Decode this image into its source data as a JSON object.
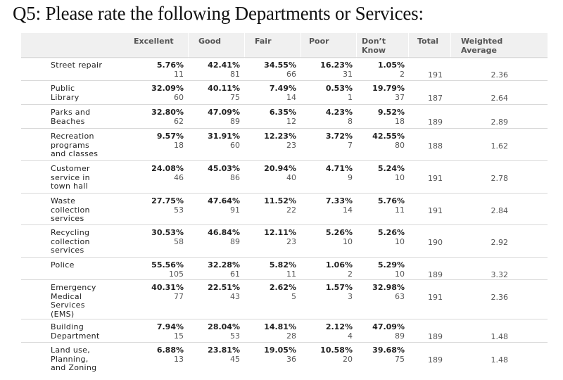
{
  "title": "Q5: Please rate the following Departments or Services:",
  "headers": {
    "excellent": "Excellent",
    "good": "Good",
    "fair": "Fair",
    "poor": "Poor",
    "dont_know_1": "Don’t",
    "dont_know_2": "Know",
    "total": "Total",
    "weighted_1": "Weighted",
    "weighted_2": "Average"
  },
  "rows": [
    {
      "label": [
        "Street repair"
      ],
      "cells": [
        [
          "5.76%",
          "11"
        ],
        [
          "42.41%",
          "81"
        ],
        [
          "34.55%",
          "66"
        ],
        [
          "16.23%",
          "31"
        ],
        [
          "1.05%",
          "2"
        ]
      ],
      "total": "191",
      "avg": "2.36"
    },
    {
      "label": [
        "Public",
        "Library"
      ],
      "cells": [
        [
          "32.09%",
          "60"
        ],
        [
          "40.11%",
          "75"
        ],
        [
          "7.49%",
          "14"
        ],
        [
          "0.53%",
          "1"
        ],
        [
          "19.79%",
          "37"
        ]
      ],
      "total": "187",
      "avg": "2.64"
    },
    {
      "label": [
        "Parks and",
        "Beaches"
      ],
      "cells": [
        [
          "32.80%",
          "62"
        ],
        [
          "47.09%",
          "89"
        ],
        [
          "6.35%",
          "12"
        ],
        [
          "4.23%",
          "8"
        ],
        [
          "9.52%",
          "18"
        ]
      ],
      "total": "189",
      "avg": "2.89"
    },
    {
      "label": [
        "Recreation",
        "programs",
        "and classes"
      ],
      "cells": [
        [
          "9.57%",
          "18"
        ],
        [
          "31.91%",
          "60"
        ],
        [
          "12.23%",
          "23"
        ],
        [
          "3.72%",
          "7"
        ],
        [
          "42.55%",
          "80"
        ]
      ],
      "total": "188",
      "avg": "1.62"
    },
    {
      "label": [
        "Customer",
        "service in",
        "town hall"
      ],
      "cells": [
        [
          "24.08%",
          "46"
        ],
        [
          "45.03%",
          "86"
        ],
        [
          "20.94%",
          "40"
        ],
        [
          "4.71%",
          "9"
        ],
        [
          "5.24%",
          "10"
        ]
      ],
      "total": "191",
      "avg": "2.78"
    },
    {
      "label": [
        "Waste",
        "collection",
        "services"
      ],
      "cells": [
        [
          "27.75%",
          "53"
        ],
        [
          "47.64%",
          "91"
        ],
        [
          "11.52%",
          "22"
        ],
        [
          "7.33%",
          "14"
        ],
        [
          "5.76%",
          "11"
        ]
      ],
      "total": "191",
      "avg": "2.84"
    },
    {
      "label": [
        "Recycling",
        "collection",
        "services"
      ],
      "cells": [
        [
          "30.53%",
          "58"
        ],
        [
          "46.84%",
          "89"
        ],
        [
          "12.11%",
          "23"
        ],
        [
          "5.26%",
          "10"
        ],
        [
          "5.26%",
          "10"
        ]
      ],
      "total": "190",
      "avg": "2.92"
    },
    {
      "label": [
        "Police"
      ],
      "cells": [
        [
          "55.56%",
          "105"
        ],
        [
          "32.28%",
          "61"
        ],
        [
          "5.82%",
          "11"
        ],
        [
          "1.06%",
          "2"
        ],
        [
          "5.29%",
          "10"
        ]
      ],
      "total": "189",
      "avg": "3.32"
    },
    {
      "label": [
        "Emergency",
        "Medical",
        "Services",
        "(EMS)"
      ],
      "cells": [
        [
          "40.31%",
          "77"
        ],
        [
          "22.51%",
          "43"
        ],
        [
          "2.62%",
          "5"
        ],
        [
          "1.57%",
          "3"
        ],
        [
          "32.98%",
          "63"
        ]
      ],
      "total": "191",
      "avg": "2.36"
    },
    {
      "label": [
        "Building",
        "Department"
      ],
      "cells": [
        [
          "7.94%",
          "15"
        ],
        [
          "28.04%",
          "53"
        ],
        [
          "14.81%",
          "28"
        ],
        [
          "2.12%",
          "4"
        ],
        [
          "47.09%",
          "89"
        ]
      ],
      "total": "189",
      "avg": "1.48"
    },
    {
      "label": [
        "Land use,",
        "Planning,",
        "and Zoning"
      ],
      "cells": [
        [
          "6.88%",
          "13"
        ],
        [
          "23.81%",
          "45"
        ],
        [
          "19.05%",
          "36"
        ],
        [
          "10.58%",
          "20"
        ],
        [
          "39.68%",
          "75"
        ]
      ],
      "total": "189",
      "avg": "1.48"
    }
  ]
}
